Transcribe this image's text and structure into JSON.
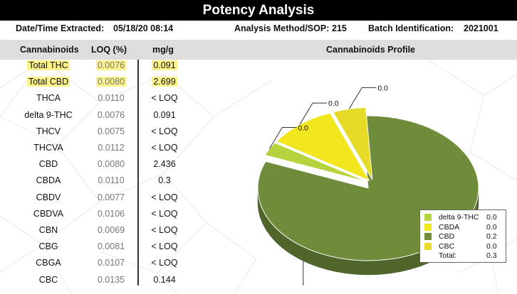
{
  "title": "Potency Analysis",
  "meta": {
    "date_label": "Date/Time Extracted:",
    "date_value": "05/18/20  08:14",
    "method_label": "Analysis Method/SOP:",
    "method_value": "215",
    "batch_label": "Batch Identification:",
    "batch_value": "2021001"
  },
  "table": {
    "headers": {
      "name": "Cannabinoids",
      "loq": "LOQ (%)",
      "mg": "mg/g"
    },
    "rows": [
      {
        "name": "Total THC",
        "loq": "0.0076",
        "mg": "0.091",
        "highlight": true
      },
      {
        "name": "Total CBD",
        "loq": "0.0080",
        "mg": "2.699",
        "highlight": true
      },
      {
        "name": "THCA",
        "loq": "0.0110",
        "mg": "< LOQ"
      },
      {
        "name": "delta 9-THC",
        "loq": "0.0076",
        "mg": "0.091"
      },
      {
        "name": "THCV",
        "loq": "0.0075",
        "mg": "< LOQ"
      },
      {
        "name": "THCVA",
        "loq": "0.0112",
        "mg": "< LOQ"
      },
      {
        "name": "CBD",
        "loq": "0.0080",
        "mg": "2.436"
      },
      {
        "name": "CBDA",
        "loq": "0.0110",
        "mg": "0.3"
      },
      {
        "name": "CBDV",
        "loq": "0.0077",
        "mg": "< LOQ"
      },
      {
        "name": "CBDVA",
        "loq": "0.0106",
        "mg": "< LOQ"
      },
      {
        "name": "CBN",
        "loq": "0.0069",
        "mg": "< LOQ"
      },
      {
        "name": "CBG",
        "loq": "0.0081",
        "mg": "< LOQ"
      },
      {
        "name": "CBGA",
        "loq": "0.0107",
        "mg": "< LOQ"
      },
      {
        "name": "CBC",
        "loq": "0.0135",
        "mg": "0.144"
      }
    ]
  },
  "chart_data": {
    "type": "pie",
    "title": "Cannabinoids Profile",
    "series": [
      {
        "name": "delta 9-THC",
        "value": 0.0,
        "mg": 0.091,
        "color": "#b5d33c",
        "label": "0.0"
      },
      {
        "name": "CBDA",
        "value": 0.0,
        "mg": 0.3,
        "color": "#f2e61e",
        "label": "0.0"
      },
      {
        "name": "CBD",
        "value": 0.2,
        "mg": 2.436,
        "color": "#6e8c3a",
        "label": "0.2"
      },
      {
        "name": "CBC",
        "value": 0.0,
        "mg": 0.144,
        "color": "#e6dc28",
        "label": "0.0"
      }
    ],
    "legend": {
      "position": "bottom-right",
      "total_label": "Total:",
      "total_value": "0.3"
    }
  }
}
